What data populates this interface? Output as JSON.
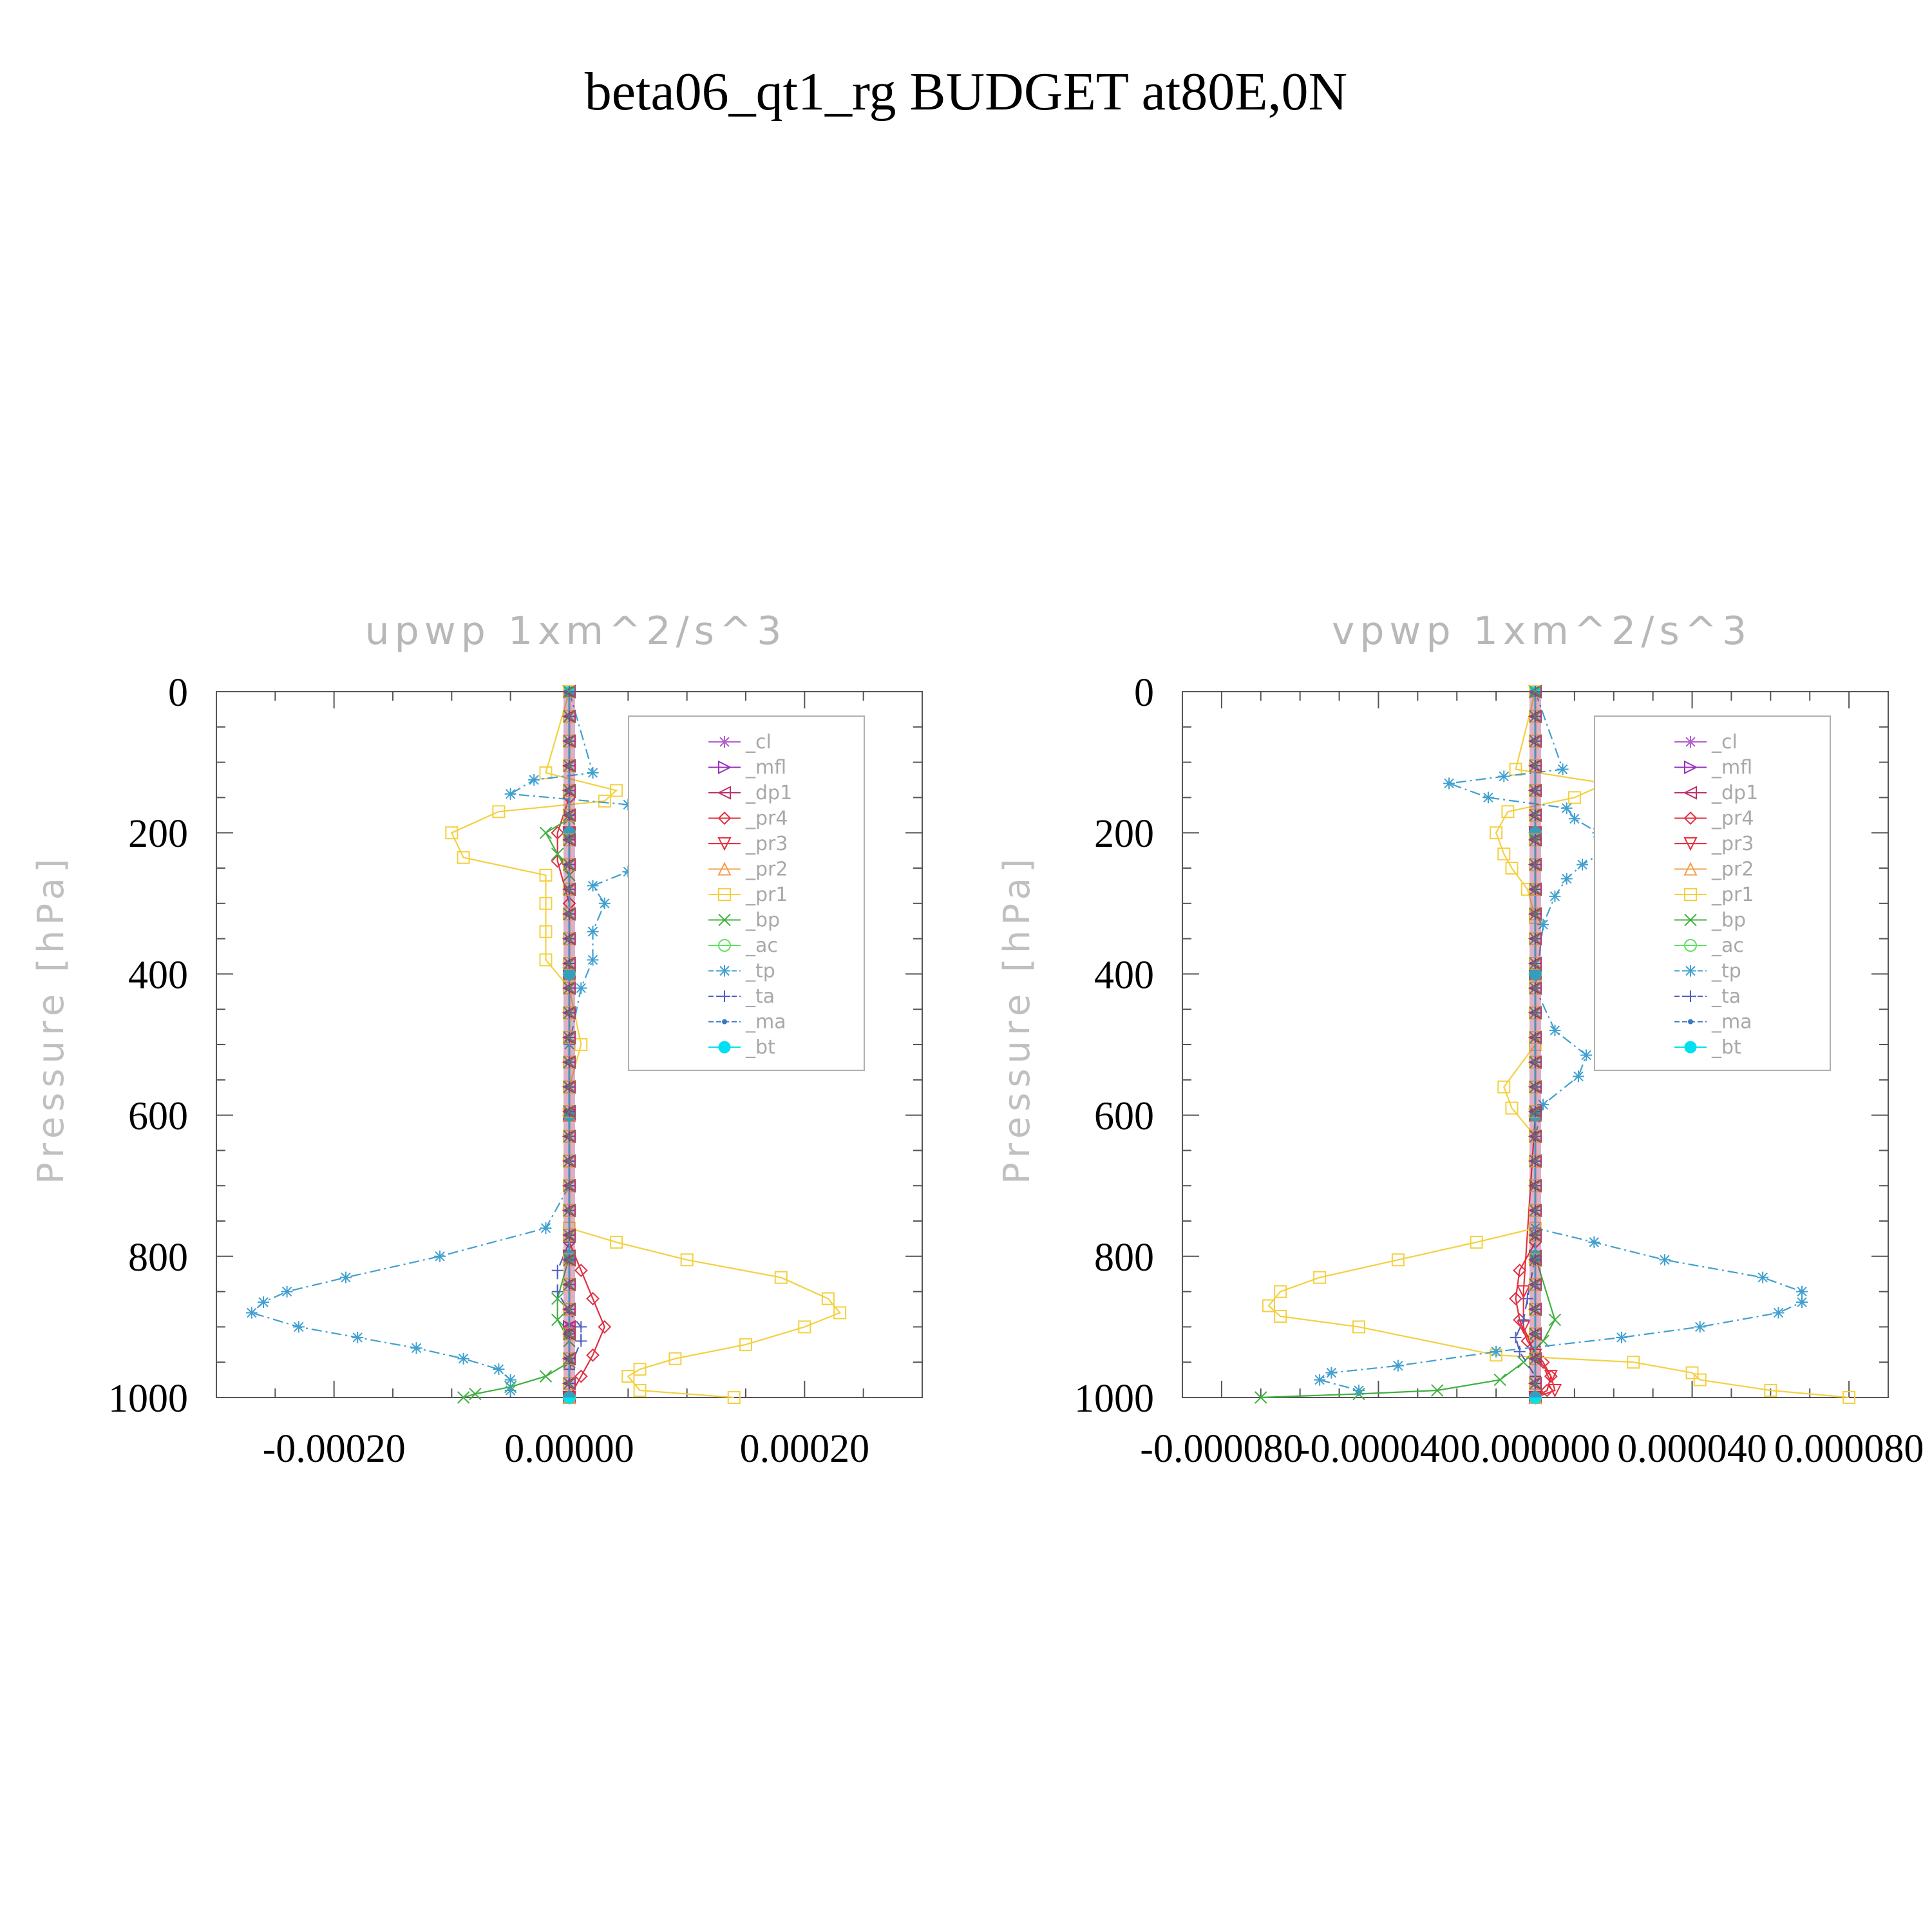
{
  "figure": {
    "title": "beta06_qt1_rg  BUDGET at80E,0N"
  },
  "legend_entries": [
    "_cl",
    "_mfl",
    "_dp1",
    "_pr4",
    "_pr3",
    "_pr2",
    "_pr1",
    "_bp",
    "_ac",
    "_tp",
    "_ta",
    "_ma",
    "_bt"
  ],
  "chart_data": [
    {
      "type": "line",
      "title": "upwp   1xm^2/s^3",
      "ylabel": "Pressure  [hPa]",
      "ylim": [
        1000,
        0
      ],
      "xlim": [
        -0.0003,
        0.0003
      ],
      "xticks": [
        "-0.00020",
        "0.00000",
        "0.00020"
      ],
      "xtick_values": [
        -0.0002,
        0.0,
        0.0002
      ],
      "yticks": [
        "0",
        "200",
        "400",
        "600",
        "800",
        "1000"
      ],
      "ytick_values": [
        0,
        200,
        400,
        600,
        800,
        1000
      ],
      "grid": false,
      "legend_position": "upper-right",
      "series": [
        {
          "name": "_cl",
          "color": "#b060d0",
          "style": "solid",
          "marker": "star",
          "x": [
            0,
            0,
            0,
            0,
            0,
            0,
            0
          ],
          "y": [
            0,
            200,
            400,
            600,
            800,
            900,
            1000
          ]
        },
        {
          "name": "_mfl",
          "color": "#9a30c0",
          "style": "solid",
          "marker": "tri-right",
          "x": [
            0,
            0,
            0,
            0,
            0,
            0,
            0
          ],
          "y": [
            0,
            200,
            400,
            600,
            800,
            900,
            1000
          ]
        },
        {
          "name": "_dp1",
          "color": "#c0306a",
          "style": "solid",
          "marker": "tri-left",
          "x": [
            0,
            0,
            0,
            0,
            0,
            0,
            0
          ],
          "y": [
            0,
            200,
            400,
            600,
            800,
            900,
            1000
          ]
        },
        {
          "name": "_pr4",
          "color": "#e03040",
          "style": "solid",
          "marker": "diamond",
          "x": [
            0,
            0,
            -1e-05,
            -1e-05,
            0,
            0,
            0,
            1e-05,
            2e-05,
            3e-05,
            2e-05,
            1e-05,
            0
          ],
          "y": [
            0,
            150,
            200,
            240,
            300,
            600,
            780,
            820,
            860,
            900,
            940,
            970,
            1000
          ]
        },
        {
          "name": "_pr3",
          "color": "#e83040",
          "style": "solid",
          "marker": "tri-down",
          "x": [
            0,
            0,
            0,
            0,
            0,
            0
          ],
          "y": [
            0,
            200,
            400,
            600,
            800,
            1000
          ]
        },
        {
          "name": "_pr2",
          "color": "#f0a050",
          "style": "solid",
          "marker": "tri-up",
          "x": [
            0,
            0,
            0,
            0,
            0,
            0
          ],
          "y": [
            0,
            200,
            400,
            600,
            800,
            1000
          ]
        },
        {
          "name": "_pr1",
          "color": "#f4d040",
          "style": "solid",
          "marker": "square",
          "x": [
            0,
            -2e-05,
            4e-05,
            3e-05,
            -6e-05,
            -0.0001,
            -9e-05,
            -2e-05,
            -2e-05,
            -2e-05,
            -2e-05,
            0,
            1e-05,
            0,
            0,
            0,
            4e-05,
            0.0001,
            0.00018,
            0.00022,
            0.00023,
            0.0002,
            0.00015,
            9e-05,
            6e-05,
            5e-05,
            6e-05,
            0.00014
          ],
          "y": [
            0,
            115,
            140,
            155,
            170,
            200,
            235,
            260,
            300,
            340,
            380,
            420,
            500,
            560,
            700,
            760,
            780,
            805,
            830,
            860,
            880,
            900,
            925,
            945,
            960,
            970,
            990,
            1000
          ]
        },
        {
          "name": "_bp",
          "color": "#40b040",
          "style": "solid",
          "marker": "x",
          "x": [
            0,
            0,
            -2e-05,
            -1e-05,
            0,
            0,
            0,
            0,
            -1e-05,
            -1e-05,
            0,
            0,
            -2e-05,
            -5e-05,
            -8e-05,
            -9e-05
          ],
          "y": [
            0,
            180,
            200,
            230,
            260,
            400,
            700,
            800,
            860,
            890,
            920,
            950,
            970,
            985,
            995,
            1000
          ]
        },
        {
          "name": "_ac",
          "color": "#60e060",
          "style": "solid",
          "marker": "circle",
          "x": [
            0,
            0,
            0,
            0,
            0,
            0
          ],
          "y": [
            0,
            200,
            400,
            600,
            800,
            1000
          ]
        },
        {
          "name": "_tp",
          "color": "#40a0d0",
          "style": "dashdot",
          "marker": "star",
          "x": [
            0,
            2e-05,
            -3e-05,
            -5e-05,
            5e-05,
            0.0001,
            0.00014,
            9e-05,
            5e-05,
            2e-05,
            3e-05,
            2e-05,
            2e-05,
            1e-05,
            0,
            0,
            0,
            -2e-05,
            -0.00011,
            -0.00019,
            -0.00024,
            -0.00026,
            -0.00027,
            -0.00023,
            -0.00018,
            -0.00013,
            -9e-05,
            -6e-05,
            -5e-05,
            -5e-05
          ],
          "y": [
            0,
            115,
            125,
            145,
            160,
            185,
            210,
            235,
            255,
            275,
            300,
            340,
            380,
            420,
            500,
            560,
            700,
            760,
            800,
            830,
            850,
            865,
            880,
            900,
            915,
            930,
            945,
            960,
            975,
            990
          ]
        },
        {
          "name": "_ta",
          "color": "#5060c0",
          "style": "dashed",
          "marker": "plus",
          "x": [
            0,
            0,
            0,
            0,
            0,
            -1e-05,
            -1e-05,
            0,
            1e-05,
            1e-05,
            0,
            0
          ],
          "y": [
            0,
            200,
            400,
            600,
            780,
            820,
            850,
            880,
            900,
            920,
            960,
            1000
          ]
        },
        {
          "name": "_ma",
          "color": "#3878c0",
          "style": "dashdot",
          "marker": "dot",
          "x": [
            0,
            0,
            0,
            0,
            0,
            0
          ],
          "y": [
            0,
            200,
            400,
            600,
            800,
            1000
          ]
        },
        {
          "name": "_bt",
          "color": "#00e0f0",
          "style": "solid",
          "marker": "filled-circle",
          "x": [
            0,
            0,
            0,
            0,
            0,
            0
          ],
          "y": [
            0,
            200,
            400,
            600,
            800,
            1000
          ]
        }
      ]
    },
    {
      "type": "line",
      "title": "vpwp   1xm^2/s^3",
      "ylabel": "Pressure  [hPa]",
      "ylim": [
        1000,
        0
      ],
      "xlim": [
        -9e-05,
        9e-05
      ],
      "xticks": [
        "-0.000080",
        "-0.000040",
        "0.000000",
        "0.000040",
        "0.000080"
      ],
      "xtick_values": [
        -8e-05,
        -4e-05,
        0.0,
        4e-05,
        8e-05
      ],
      "yticks": [
        "0",
        "200",
        "400",
        "600",
        "800",
        "1000"
      ],
      "ytick_values": [
        0,
        200,
        400,
        600,
        800,
        1000
      ],
      "grid": false,
      "legend_position": "upper-right",
      "series": [
        {
          "name": "_cl",
          "color": "#b060d0",
          "style": "solid",
          "marker": "star",
          "x": [
            0,
            0,
            0,
            0,
            0,
            0
          ],
          "y": [
            0,
            200,
            400,
            600,
            800,
            1000
          ]
        },
        {
          "name": "_mfl",
          "color": "#9a30c0",
          "style": "solid",
          "marker": "tri-right",
          "x": [
            0,
            0,
            0,
            0,
            0,
            0
          ],
          "y": [
            0,
            200,
            400,
            600,
            800,
            1000
          ]
        },
        {
          "name": "_dp1",
          "color": "#c0306a",
          "style": "solid",
          "marker": "tri-left",
          "x": [
            0,
            0,
            0,
            0,
            0,
            0
          ],
          "y": [
            0,
            200,
            400,
            600,
            800,
            1000
          ]
        },
        {
          "name": "_pr4",
          "color": "#e03040",
          "style": "solid",
          "marker": "diamond",
          "x": [
            0,
            0,
            0,
            0,
            0,
            -4e-06,
            -5e-06,
            -4e-06,
            -2e-06,
            2e-06,
            4e-06,
            3e-06,
            0
          ],
          "y": [
            0,
            200,
            400,
            600,
            780,
            820,
            860,
            890,
            920,
            950,
            970,
            990,
            1000
          ]
        },
        {
          "name": "_pr3",
          "color": "#e83040",
          "style": "solid",
          "marker": "tri-down",
          "x": [
            0,
            0,
            0,
            -3e-06,
            -3e-06,
            0,
            4e-06,
            5e-06,
            0
          ],
          "y": [
            0,
            200,
            600,
            850,
            900,
            940,
            970,
            990,
            1000
          ]
        },
        {
          "name": "_pr2",
          "color": "#f0a050",
          "style": "solid",
          "marker": "tri-up",
          "x": [
            0,
            0,
            0,
            0,
            0,
            0
          ],
          "y": [
            0,
            200,
            400,
            600,
            800,
            1000
          ]
        },
        {
          "name": "_pr1",
          "color": "#f4d040",
          "style": "solid",
          "marker": "square",
          "x": [
            0,
            -5e-06,
            1.8e-05,
            1e-05,
            -7e-06,
            -1e-05,
            -8e-06,
            -6e-06,
            -2e-06,
            0,
            0,
            0,
            -8e-06,
            -6e-06,
            0,
            0,
            -1.5e-05,
            -3.5e-05,
            -5.5e-05,
            -6.5e-05,
            -6.8e-05,
            -6.5e-05,
            -4.5e-05,
            -1e-05,
            2.5e-05,
            4e-05,
            4.2e-05,
            6e-05,
            8e-05
          ],
          "y": [
            0,
            110,
            130,
            150,
            170,
            200,
            230,
            250,
            280,
            320,
            420,
            500,
            560,
            590,
            630,
            760,
            780,
            805,
            830,
            850,
            870,
            885,
            900,
            940,
            950,
            965,
            975,
            990,
            1000
          ]
        },
        {
          "name": "_bp",
          "color": "#40b040",
          "style": "solid",
          "marker": "x",
          "x": [
            0,
            0,
            0,
            0,
            0,
            5e-06,
            2e-06,
            -3e-06,
            -9e-06,
            -2.5e-05,
            -4.5e-05,
            -7e-05
          ],
          "y": [
            0,
            200,
            400,
            600,
            800,
            890,
            920,
            950,
            975,
            990,
            995,
            1000
          ]
        },
        {
          "name": "_ac",
          "color": "#60e060",
          "style": "solid",
          "marker": "circle",
          "x": [
            0,
            0,
            0,
            0,
            0,
            0
          ],
          "y": [
            0,
            200,
            400,
            600,
            800,
            1000
          ]
        },
        {
          "name": "_tp",
          "color": "#40a0d0",
          "style": "dashdot",
          "marker": "star",
          "x": [
            0,
            7e-06,
            -8e-06,
            -2.2e-05,
            -1.2e-05,
            8e-06,
            1e-05,
            1.6e-05,
            1.8e-05,
            1.2e-05,
            8e-06,
            5e-06,
            2e-06,
            0,
            5e-06,
            1.3e-05,
            1.1e-05,
            2e-06,
            0,
            0,
            1.5e-05,
            3.3e-05,
            5.8e-05,
            6.8e-05,
            6.8e-05,
            6.2e-05,
            4.2e-05,
            2.2e-05,
            -1e-05,
            -3.5e-05,
            -5.2e-05,
            -5.5e-05,
            -4.5e-05
          ],
          "y": [
            0,
            110,
            120,
            130,
            150,
            165,
            180,
            200,
            225,
            245,
            265,
            290,
            330,
            420,
            480,
            515,
            545,
            585,
            630,
            760,
            780,
            805,
            830,
            850,
            865,
            880,
            900,
            915,
            935,
            955,
            965,
            975,
            990
          ]
        },
        {
          "name": "_ta",
          "color": "#5060c0",
          "style": "dashed",
          "marker": "plus",
          "x": [
            0,
            0,
            0,
            0,
            0,
            -2e-06,
            -3e-06,
            -5e-06,
            -4e-06,
            0,
            0
          ],
          "y": [
            0,
            200,
            400,
            600,
            800,
            860,
            890,
            915,
            935,
            970,
            1000
          ]
        },
        {
          "name": "_ma",
          "color": "#3878c0",
          "style": "dashdot",
          "marker": "dot",
          "x": [
            0,
            0,
            0,
            0,
            0,
            0
          ],
          "y": [
            0,
            200,
            400,
            600,
            800,
            1000
          ]
        },
        {
          "name": "_bt",
          "color": "#00e0f0",
          "style": "solid",
          "marker": "filled-circle",
          "x": [
            0,
            0,
            0,
            0,
            0,
            0
          ],
          "y": [
            0,
            200,
            400,
            600,
            800,
            1000
          ]
        }
      ]
    }
  ]
}
